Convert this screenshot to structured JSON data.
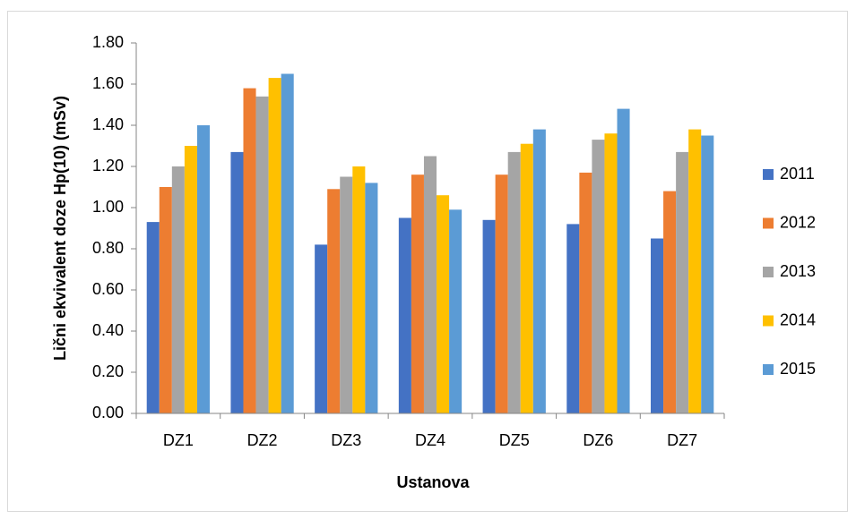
{
  "chart_data": {
    "type": "bar",
    "y_label": "Lični ekvivalent doze Hp(10) (mSv)",
    "x_label": "Ustanova",
    "categories": [
      "DZ1",
      "DZ2",
      "DZ3",
      "DZ4",
      "DZ5",
      "DZ6",
      "DZ7"
    ],
    "series": [
      {
        "name": "2011",
        "color": "#4472c4",
        "values": [
          0.93,
          1.27,
          0.82,
          0.95,
          0.94,
          0.92,
          0.85
        ]
      },
      {
        "name": "2012",
        "color": "#ed7d31",
        "values": [
          1.1,
          1.58,
          1.09,
          1.16,
          1.16,
          1.17,
          1.08
        ]
      },
      {
        "name": "2013",
        "color": "#a5a5a5",
        "values": [
          1.2,
          1.54,
          1.15,
          1.25,
          1.27,
          1.33,
          1.27
        ]
      },
      {
        "name": "2014",
        "color": "#ffc000",
        "values": [
          1.3,
          1.63,
          1.2,
          1.06,
          1.31,
          1.36,
          1.38
        ]
      },
      {
        "name": "2015",
        "color": "#5b9bd5",
        "values": [
          1.4,
          1.65,
          1.12,
          0.99,
          1.38,
          1.48,
          1.35
        ]
      }
    ],
    "ylim": [
      0,
      1.8
    ],
    "yticks": [
      {
        "value": 0,
        "label": "0.00"
      },
      {
        "value": 0.2,
        "label": "0.20"
      },
      {
        "value": 0.4,
        "label": "0.40"
      },
      {
        "value": 0.6,
        "label": "0.60"
      },
      {
        "value": 0.8,
        "label": "0.80"
      },
      {
        "value": 1.0,
        "label": "1.00"
      },
      {
        "value": 1.2,
        "label": "1.20"
      },
      {
        "value": 1.4,
        "label": "1.40"
      },
      {
        "value": 1.6,
        "label": "1.60"
      },
      {
        "value": 1.8,
        "label": "1.80"
      }
    ],
    "grid": false,
    "legend": "right"
  }
}
